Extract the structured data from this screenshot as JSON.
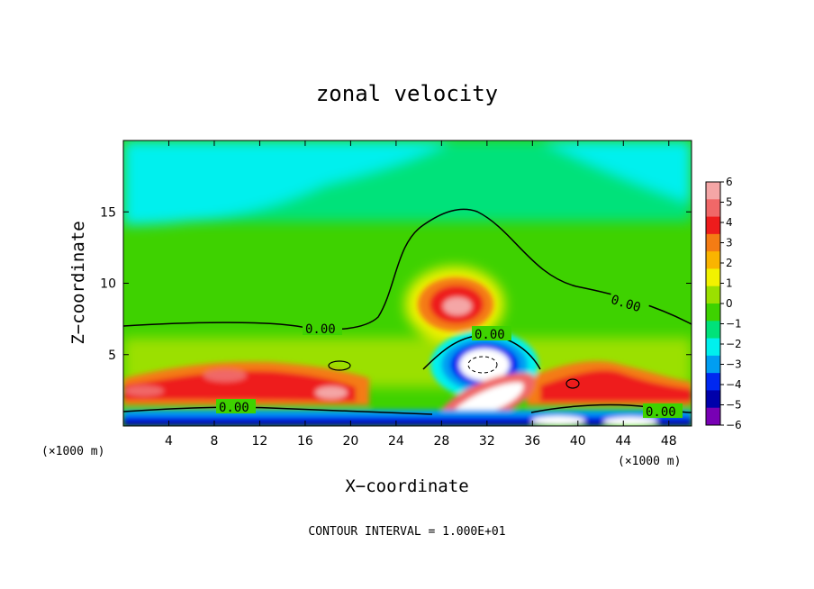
{
  "chart_data": {
    "type": "heatmap",
    "title": "zonal velocity",
    "xlabel": "X−coordinate",
    "ylabel": "Z−coordinate",
    "x_unit_left": "(×1000 m)",
    "x_unit_right": "(×1000 m)",
    "footnote": "CONTOUR INTERVAL = 1.000E+01",
    "xlim": [
      0,
      50
    ],
    "ylim": [
      0,
      20
    ],
    "x_ticks": [
      4,
      8,
      12,
      16,
      20,
      24,
      28,
      32,
      36,
      40,
      44,
      48
    ],
    "x_tick_labels": [
      "4",
      "8",
      "12",
      "16",
      "20",
      "24",
      "28",
      "32",
      "36",
      "40",
      "44",
      "48"
    ],
    "y_ticks": [
      5,
      10,
      15
    ],
    "y_tick_labels": [
      "5",
      "10",
      "15"
    ],
    "contour_label": "0.00",
    "colorbar": {
      "levels": [
        6,
        5,
        4,
        3,
        2,
        1,
        0,
        -1,
        -2,
        -3,
        -4,
        -5,
        -6
      ],
      "labels": [
        "6",
        "5",
        "4",
        "3",
        "2",
        "1",
        "0",
        "−1",
        "−2",
        "−3",
        "−4",
        "−5",
        "−6"
      ],
      "colors": [
        "#f4a6a6",
        "#f06868",
        "#ee1c1c",
        "#f47c14",
        "#fab400",
        "#f2f200",
        "#9be000",
        "#3ed200",
        "#00e27a",
        "#00f0ee",
        "#009ef2",
        "#0028f0",
        "#0000aa",
        "#7800b4"
      ]
    },
    "features": [
      {
        "name": "upper-cyan-region",
        "x": 6,
        "z": 17,
        "value": -2
      },
      {
        "name": "upper-right-cyan-region",
        "x": 47,
        "z": 18,
        "value": -2
      },
      {
        "name": "positive-jet-core",
        "x": 30,
        "z": 8.4,
        "value": 6
      },
      {
        "name": "negative-vortex-core",
        "x": 32,
        "z": 4.3,
        "value": -6
      },
      {
        "name": "lower-band-positive",
        "x": 10,
        "z": 2.5,
        "value": 4
      },
      {
        "name": "near-surface-negative",
        "x": 18,
        "z": 0.3,
        "value": -5
      }
    ]
  }
}
